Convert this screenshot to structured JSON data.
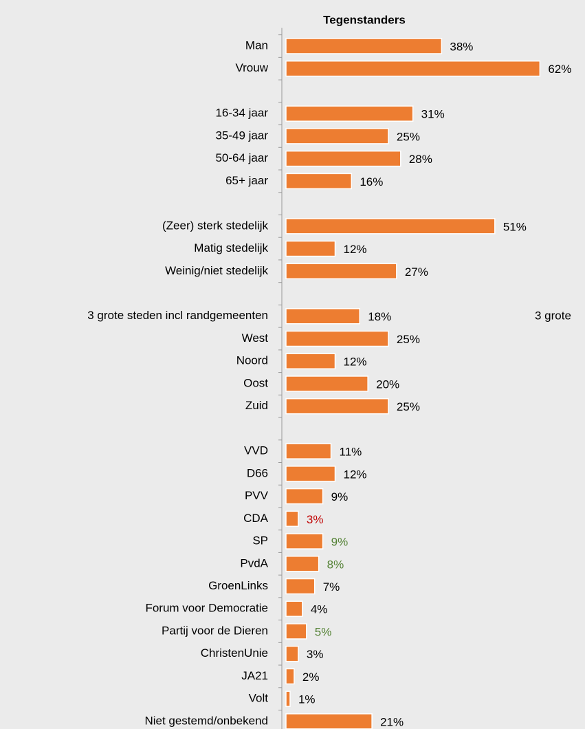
{
  "chart_data": {
    "type": "hbar",
    "title": "Tegenstanders",
    "categories": [
      "Man",
      "Vrouw",
      null,
      "16-34 jaar",
      "35-49 jaar",
      "50-64 jaar",
      "65+ jaar",
      null,
      "(Zeer) sterk stedelijk",
      "Matig stedelijk",
      "Weinig/niet stedelijk",
      null,
      "3 grote steden incl randgemeenten",
      "West",
      "Noord",
      "Oost",
      "Zuid",
      null,
      "VVD",
      "D66",
      "PVV",
      "CDA",
      "SP",
      "PvdA",
      "GroenLinks",
      "Forum voor Democratie",
      "Partij voor de Dieren",
      "ChristenUnie",
      "JA21",
      "Volt",
      "Niet gestemd/onbekend"
    ],
    "values": [
      38,
      62,
      null,
      31,
      25,
      28,
      16,
      null,
      51,
      12,
      27,
      null,
      18,
      25,
      12,
      20,
      25,
      null,
      11,
      12,
      9,
      3,
      9,
      8,
      7,
      4,
      5,
      3,
      2,
      1,
      21
    ],
    "value_labels": [
      "38%",
      "62%",
      null,
      "31%",
      "25%",
      "28%",
      "16%",
      null,
      "51%",
      "12%",
      "27%",
      null,
      "18%",
      "25%",
      "12%",
      "20%",
      "25%",
      null,
      "11%",
      "12%",
      "9%",
      "3%",
      "9%",
      "8%",
      "7%",
      "4%",
      "5%",
      "3%",
      "2%",
      "1%",
      "21%"
    ],
    "value_label_colors": [
      null,
      null,
      null,
      null,
      null,
      null,
      null,
      null,
      null,
      null,
      null,
      null,
      null,
      null,
      null,
      null,
      null,
      null,
      null,
      null,
      null,
      "#c00000",
      "#548235",
      "#548235",
      null,
      null,
      "#548235",
      null,
      null,
      null,
      null
    ],
    "label_color": "#000000",
    "color": "#ed7d31",
    "xlim": [
      0,
      70
    ],
    "annotation": "3 grote"
  }
}
